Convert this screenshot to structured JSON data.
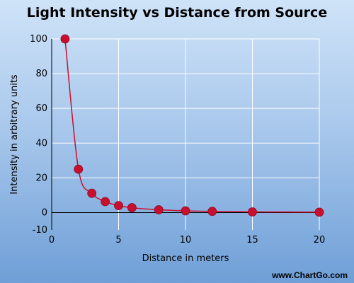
{
  "chart_data": {
    "type": "scatter",
    "title": "Light Intensity vs Distance from Source",
    "xlabel": "Distance in meters",
    "ylabel": "Intensity in arbitrary units",
    "xlim": [
      0,
      20
    ],
    "ylim": [
      -10,
      100
    ],
    "xticks": [
      0,
      5,
      10,
      15,
      20
    ],
    "yticks": [
      -10,
      0,
      20,
      40,
      60,
      80,
      100
    ],
    "grid": true,
    "smooth_line": true,
    "colors": {
      "series": "#c8102e",
      "grid": "#ffffff",
      "axis": "#000000"
    },
    "series": [
      {
        "x": [
          1,
          2,
          3,
          4,
          5,
          6,
          8,
          10,
          12,
          15,
          20
        ],
        "y": [
          100,
          25,
          11.1,
          6.3,
          4,
          2.8,
          1.6,
          1,
          0.7,
          0.4,
          0.25
        ]
      }
    ]
  },
  "watermark": "www.ChartGo.com"
}
